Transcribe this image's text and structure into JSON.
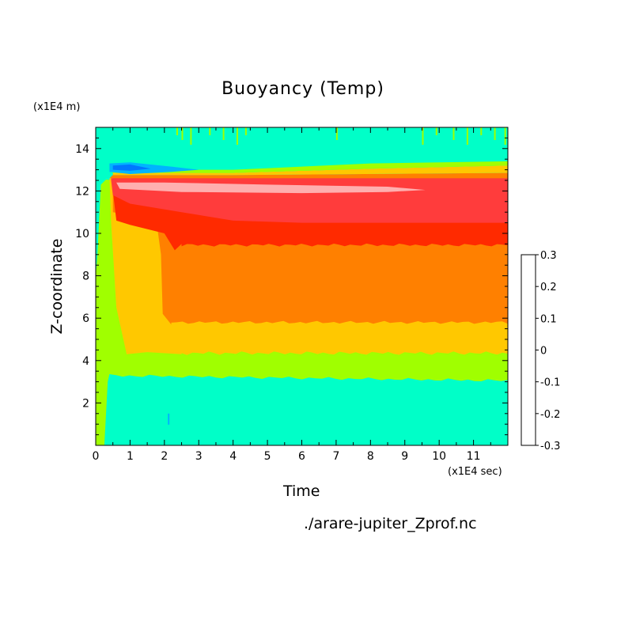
{
  "chart_data": {
    "type": "heatmap",
    "title": "Buoyancy (Temp)",
    "xlabel": "Time",
    "ylabel": "Z-coordinate",
    "x_unit": "(x1E4 sec)",
    "y_unit": "(x1E4 m)",
    "source_file": "./arare-jupiter_Zprof.nc",
    "xlim": [
      0,
      12
    ],
    "ylim": [
      0,
      15
    ],
    "x_ticks": [
      0,
      1,
      2,
      3,
      4,
      5,
      6,
      7,
      8,
      9,
      10,
      11
    ],
    "y_ticks": [
      2,
      4,
      6,
      8,
      10,
      12,
      14
    ],
    "colorbar": {
      "levels": [
        -0.3,
        -0.25,
        -0.2,
        -0.15,
        -0.1,
        -0.05,
        0,
        0.05,
        0.1,
        0.15,
        0.2,
        0.25,
        0.3
      ],
      "tick_labels": [
        "-0.3",
        "-0.2",
        "-0.1",
        "0",
        "0.1",
        "0.2",
        "0.3"
      ],
      "colors": [
        "#8c00a8",
        "#0000d0",
        "#0033ff",
        "#0077ff",
        "#00b4ff",
        "#00ffc8",
        "#a0ff00",
        "#ffc800",
        "#ff8000",
        "#ff2a00",
        "#ff3c3c",
        "#ffafaf"
      ]
    },
    "regions": [
      {
        "band": "0.25 to 0.3",
        "x_range": [
          0.6,
          9.6
        ],
        "z_range": [
          11.9,
          12.4
        ]
      },
      {
        "band": "0.2 to 0.25",
        "x_range": [
          0.4,
          12
        ],
        "z_range": [
          10.5,
          12.6
        ]
      },
      {
        "band": "0.15 to 0.2",
        "x_range": [
          0.5,
          12
        ],
        "z_range": [
          9.4,
          10.5
        ]
      },
      {
        "band": "0.1 to 0.15",
        "x_range": [
          1.9,
          12
        ],
        "z_range": [
          5.8,
          9.4
        ]
      },
      {
        "band": "0.05 to 0.1",
        "x_range": [
          0.7,
          12
        ],
        "z_range": [
          4.4,
          5.8
        ]
      },
      {
        "band": "0 to 0.05",
        "x_range": [
          0,
          12
        ],
        "z_range": [
          3.1,
          4.4
        ]
      },
      {
        "band": "-0.05 to 0",
        "x_range": [
          0,
          12
        ],
        "z_range": [
          0,
          3.1
        ]
      },
      {
        "band": "-0.1 to -0.05",
        "x_range": [
          0.4,
          3.0
        ],
        "z_range": [
          12.8,
          13.3
        ]
      }
    ]
  }
}
